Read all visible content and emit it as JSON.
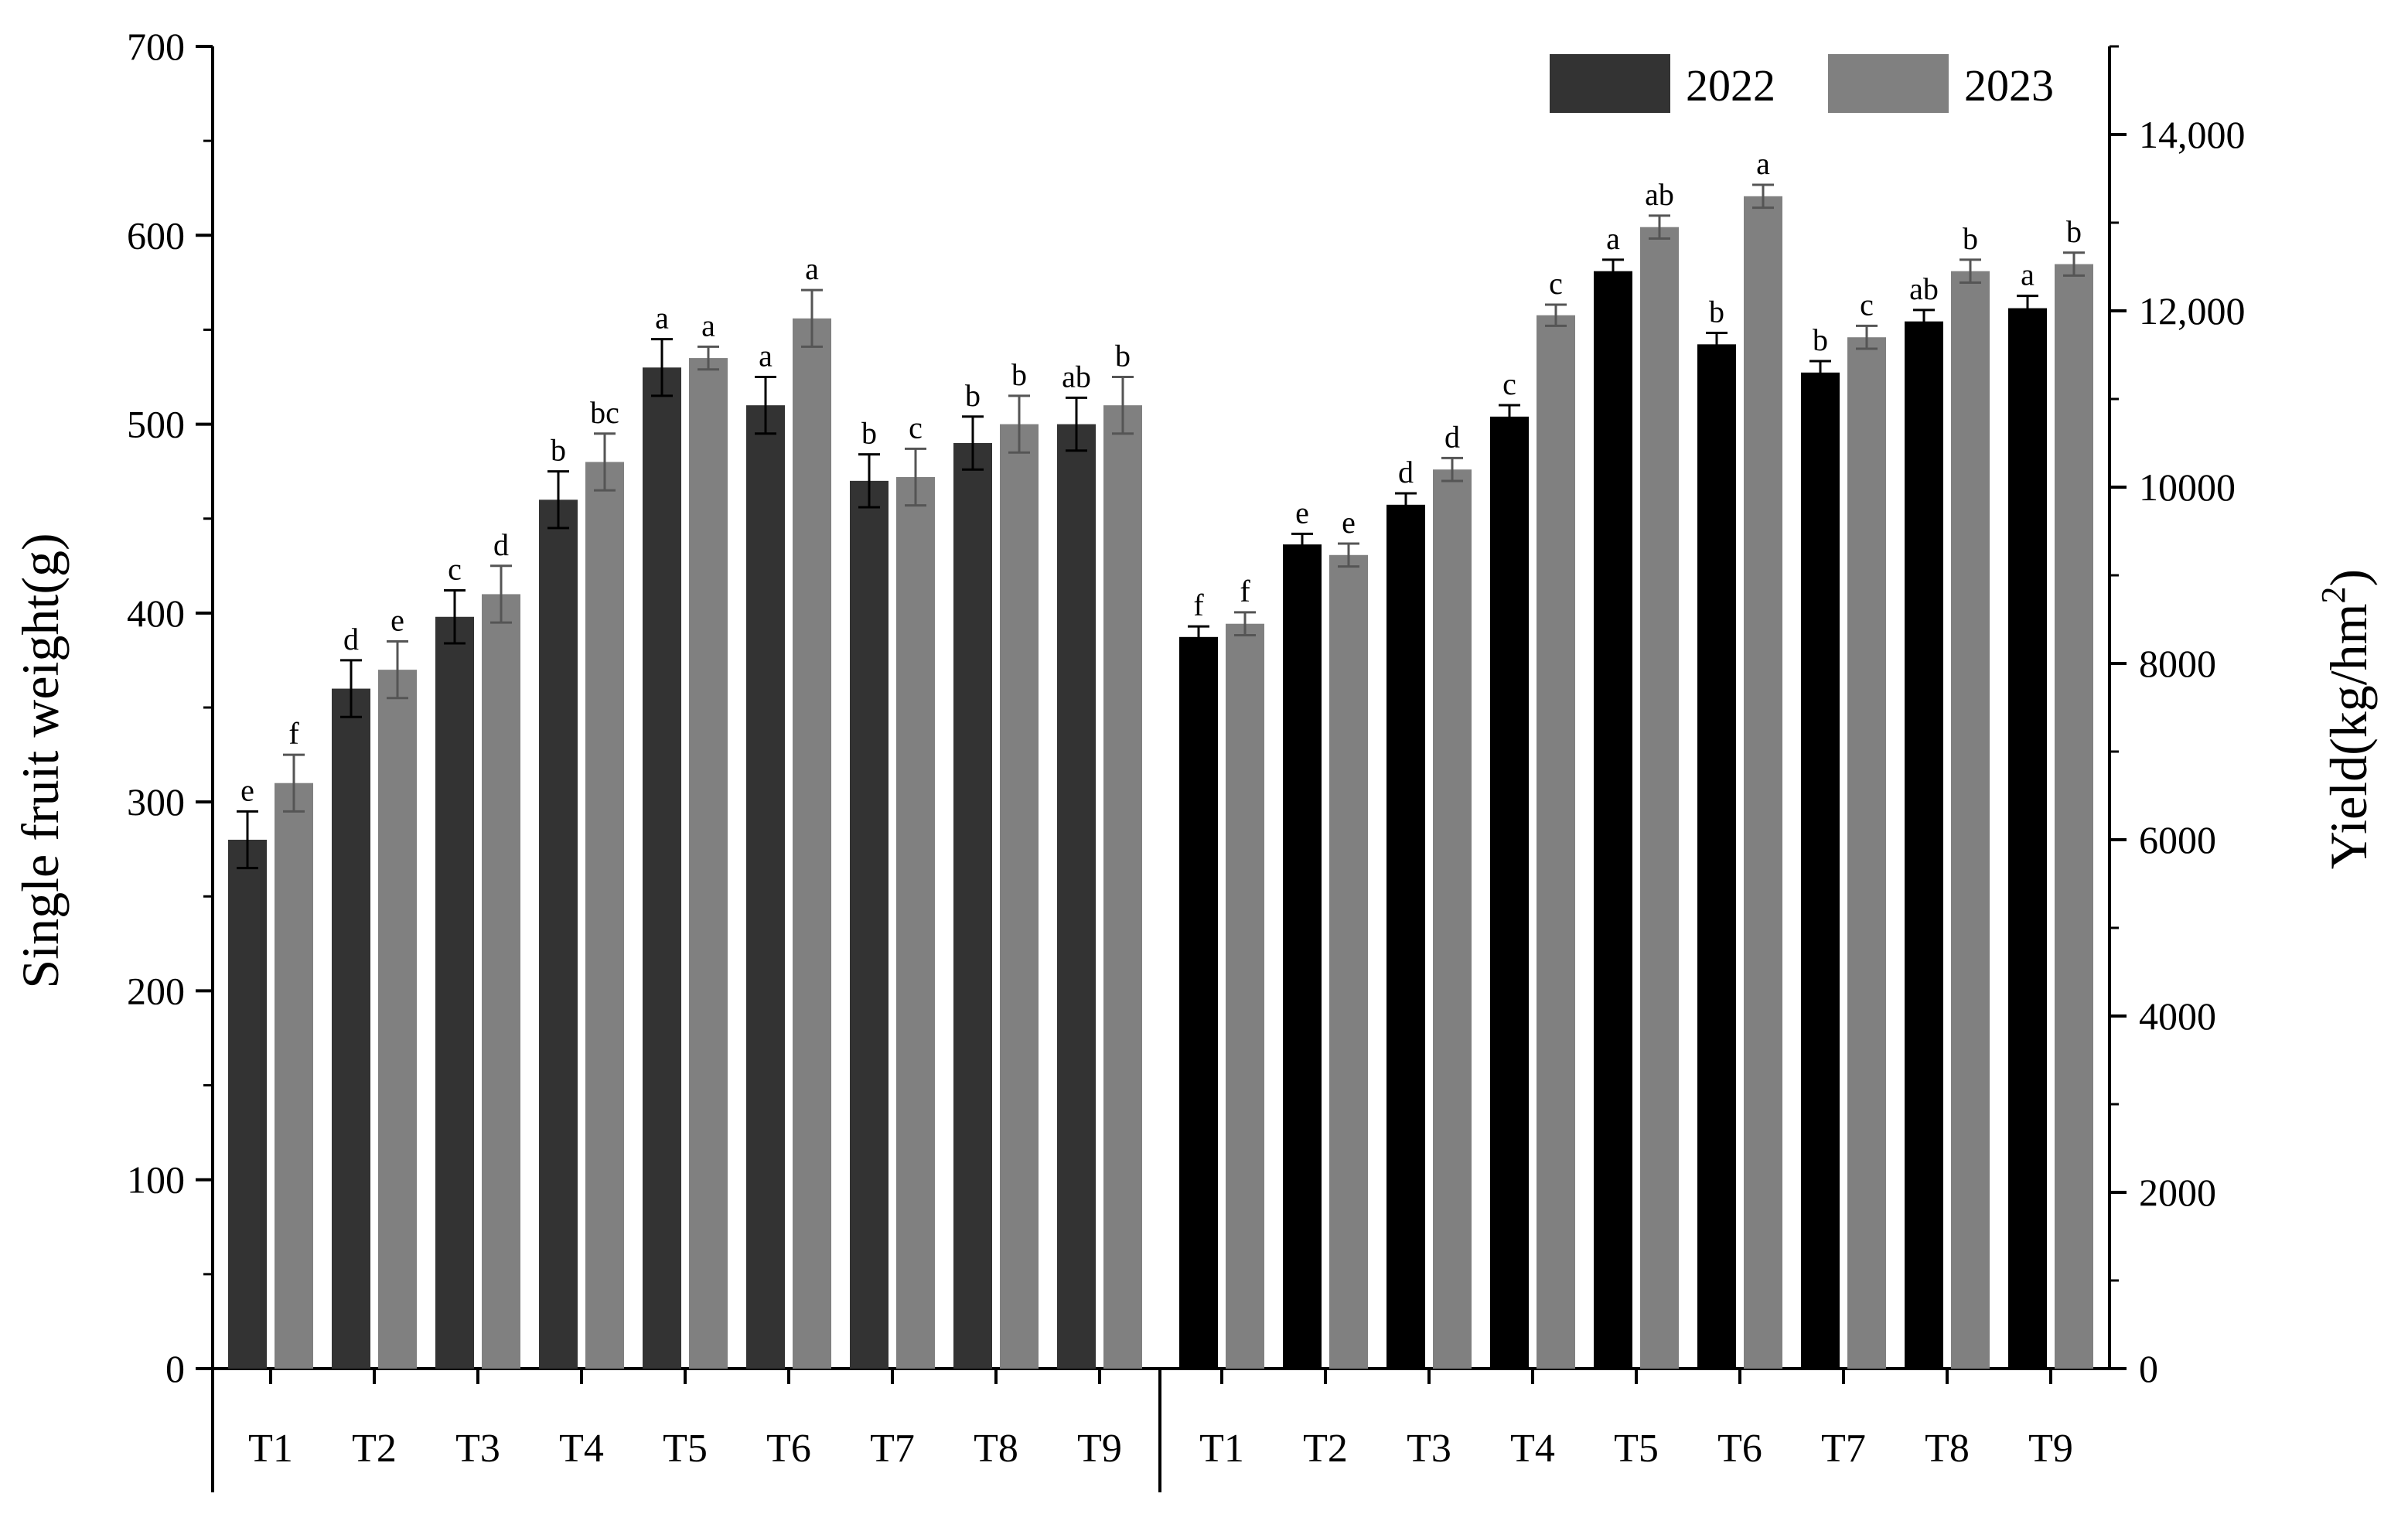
{
  "chart_data": {
    "type": "bar",
    "legend": [
      {
        "name": "2022",
        "color": "#333333"
      },
      {
        "name": "2023",
        "color": "#808080"
      }
    ],
    "legend_position": "top-right",
    "panels": [
      {
        "ylabel": "Single fruit weight(g)",
        "axis": "left",
        "ylim": [
          0,
          700
        ],
        "yticks": [
          "0",
          "100",
          "200",
          "300",
          "400",
          "500",
          "600",
          "700"
        ],
        "ytick_values": [
          0,
          100,
          200,
          300,
          400,
          500,
          600,
          700
        ],
        "categories": [
          "T1",
          "T2",
          "T3",
          "T4",
          "T5",
          "T6",
          "T7",
          "T8",
          "T9"
        ],
        "series": [
          {
            "name": "2022",
            "color": "#333333",
            "values": [
              280,
              360,
              398,
              460,
              530,
              510,
              470,
              490,
              500
            ],
            "errors": [
              15,
              15,
              14,
              15,
              15,
              15,
              14,
              14,
              14
            ],
            "letters": [
              "e",
              "d",
              "c",
              "b",
              "a",
              "a",
              "b",
              "b",
              "ab"
            ]
          },
          {
            "name": "2023",
            "color": "#808080",
            "values": [
              310,
              370,
              410,
              480,
              535,
              556,
              472,
              500,
              510
            ],
            "errors": [
              15,
              15,
              15,
              15,
              6,
              15,
              15,
              15,
              15
            ],
            "letters": [
              "f",
              "e",
              "d",
              "bc",
              "a",
              "a",
              "c",
              "b",
              "b"
            ]
          }
        ]
      },
      {
        "ylabel": "Yield(kg/hm",
        "ylabel_sup": "2",
        "ylabel_end": ")",
        "axis": "right",
        "ylim": [
          0,
          15000
        ],
        "yticks": [
          "0",
          "2000",
          "4000",
          "6000",
          "8000",
          "10000",
          "12,000",
          "14,000"
        ],
        "ytick_values": [
          0,
          2000,
          4000,
          6000,
          8000,
          10000,
          12000,
          14000
        ],
        "categories": [
          "T1",
          "T2",
          "T3",
          "T4",
          "T5",
          "T6",
          "T7",
          "T8",
          "T9"
        ],
        "series": [
          {
            "name": "2022",
            "color": "#000000",
            "values": [
              8300,
              9350,
              9800,
              10800,
              12450,
              11620,
              11300,
              11880,
              12030
            ],
            "errors": [
              120,
              120,
              130,
              130,
              130,
              130,
              130,
              130,
              140
            ],
            "letters": [
              "f",
              "e",
              "d",
              "c",
              "a",
              "b",
              "b",
              "ab",
              "a"
            ]
          },
          {
            "name": "2023",
            "color": "#808080",
            "values": [
              8450,
              9230,
              10200,
              11950,
              12950,
              13300,
              11700,
              12450,
              12530
            ],
            "errors": [
              130,
              130,
              130,
              120,
              130,
              130,
              130,
              130,
              130
            ],
            "letters": [
              "f",
              "e",
              "d",
              "c",
              "ab",
              "a",
              "c",
              "b",
              "b"
            ]
          }
        ]
      }
    ]
  }
}
